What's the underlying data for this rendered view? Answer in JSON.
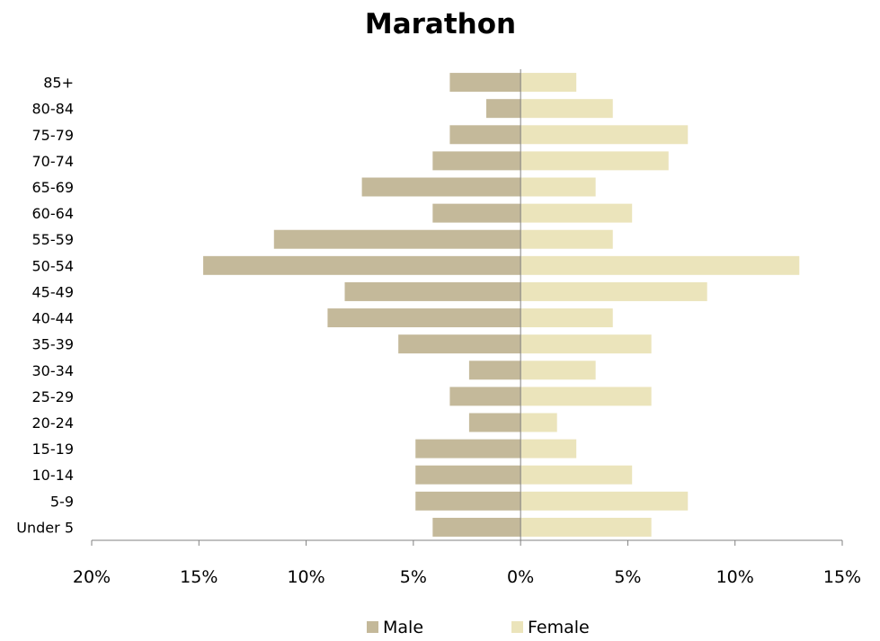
{
  "chart_data": {
    "type": "bar",
    "orientation": "horizontal",
    "title": "Marathon",
    "categories": [
      "Under 5",
      "5-9",
      "10-14",
      "15-19",
      "20-24",
      "25-29",
      "30-34",
      "35-39",
      "40-44",
      "45-49",
      "50-54",
      "55-59",
      "60-64",
      "65-69",
      "70-74",
      "75-79",
      "80-84",
      "85+"
    ],
    "category_labels": [
      "Under 5",
      "5-9",
      "10-14",
      "15-19",
      "20-24",
      "25-29",
      "30-34",
      "35-39",
      "40-44",
      "45-49",
      "50-54",
      "55-59",
      "60-64",
      "65-69",
      "70-74",
      "75-79",
      "80-84",
      "85+"
    ],
    "series": [
      {
        "name": "Male",
        "color": "#c4b99a",
        "direction": "left",
        "values": [
          4.1,
          4.9,
          4.9,
          4.9,
          2.4,
          3.3,
          2.4,
          5.7,
          9.0,
          8.2,
          14.8,
          11.5,
          4.1,
          7.4,
          4.1,
          3.3,
          1.6,
          3.3
        ]
      },
      {
        "name": "Female",
        "color": "#ebe4bb",
        "direction": "right",
        "values": [
          6.1,
          7.8,
          5.2,
          2.6,
          1.7,
          6.1,
          3.5,
          6.1,
          4.3,
          8.7,
          13.0,
          4.3,
          5.2,
          3.5,
          6.9,
          7.8,
          4.3,
          2.6
        ]
      }
    ],
    "xlim": [
      -20,
      15
    ],
    "ticks": [
      {
        "value": -20,
        "label": "20%"
      },
      {
        "value": -15,
        "label": "15%"
      },
      {
        "value": -10,
        "label": "10%"
      },
      {
        "value": -5,
        "label": "5%"
      },
      {
        "value": 0,
        "label": "0%"
      },
      {
        "value": 5,
        "label": "5%"
      },
      {
        "value": 10,
        "label": "10%"
      },
      {
        "value": 15,
        "label": "15%"
      }
    ],
    "legend_position": "bottom",
    "grid": false,
    "axis_color": "#808080"
  }
}
